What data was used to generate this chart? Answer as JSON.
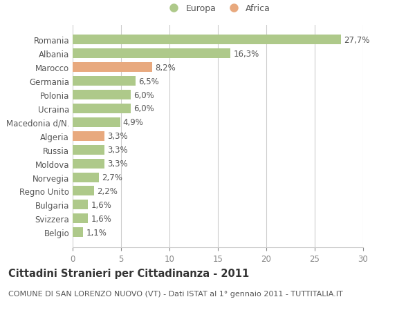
{
  "categories": [
    "Romania",
    "Albania",
    "Marocco",
    "Germania",
    "Polonia",
    "Ucraina",
    "Macedonia d/N.",
    "Algeria",
    "Russia",
    "Moldova",
    "Norvegia",
    "Regno Unito",
    "Bulgaria",
    "Svizzera",
    "Belgio"
  ],
  "values": [
    27.7,
    16.3,
    8.2,
    6.5,
    6.0,
    6.0,
    4.9,
    3.3,
    3.3,
    3.3,
    2.7,
    2.2,
    1.6,
    1.6,
    1.1
  ],
  "labels": [
    "27,7%",
    "16,3%",
    "8,2%",
    "6,5%",
    "6,0%",
    "6,0%",
    "4,9%",
    "3,3%",
    "3,3%",
    "3,3%",
    "2,7%",
    "2,2%",
    "1,6%",
    "1,6%",
    "1,1%"
  ],
  "continents": [
    "Europa",
    "Europa",
    "Africa",
    "Europa",
    "Europa",
    "Europa",
    "Europa",
    "Africa",
    "Europa",
    "Europa",
    "Europa",
    "Europa",
    "Europa",
    "Europa",
    "Europa"
  ],
  "color_europa": "#aec98a",
  "color_africa": "#e8a97e",
  "legend_europa": "Europa",
  "legend_africa": "Africa",
  "xlim": [
    0,
    30
  ],
  "xticks": [
    0,
    5,
    10,
    15,
    20,
    25,
    30
  ],
  "title": "Cittadini Stranieri per Cittadinanza - 2011",
  "subtitle": "COMUNE DI SAN LORENZO NUOVO (VT) - Dati ISTAT al 1° gennaio 2011 - TUTTITALIA.IT",
  "background_color": "#ffffff",
  "grid_color": "#cccccc",
  "bar_height": 0.7,
  "label_fontsize": 8.5,
  "title_fontsize": 10.5,
  "subtitle_fontsize": 8,
  "tick_fontsize": 8.5
}
